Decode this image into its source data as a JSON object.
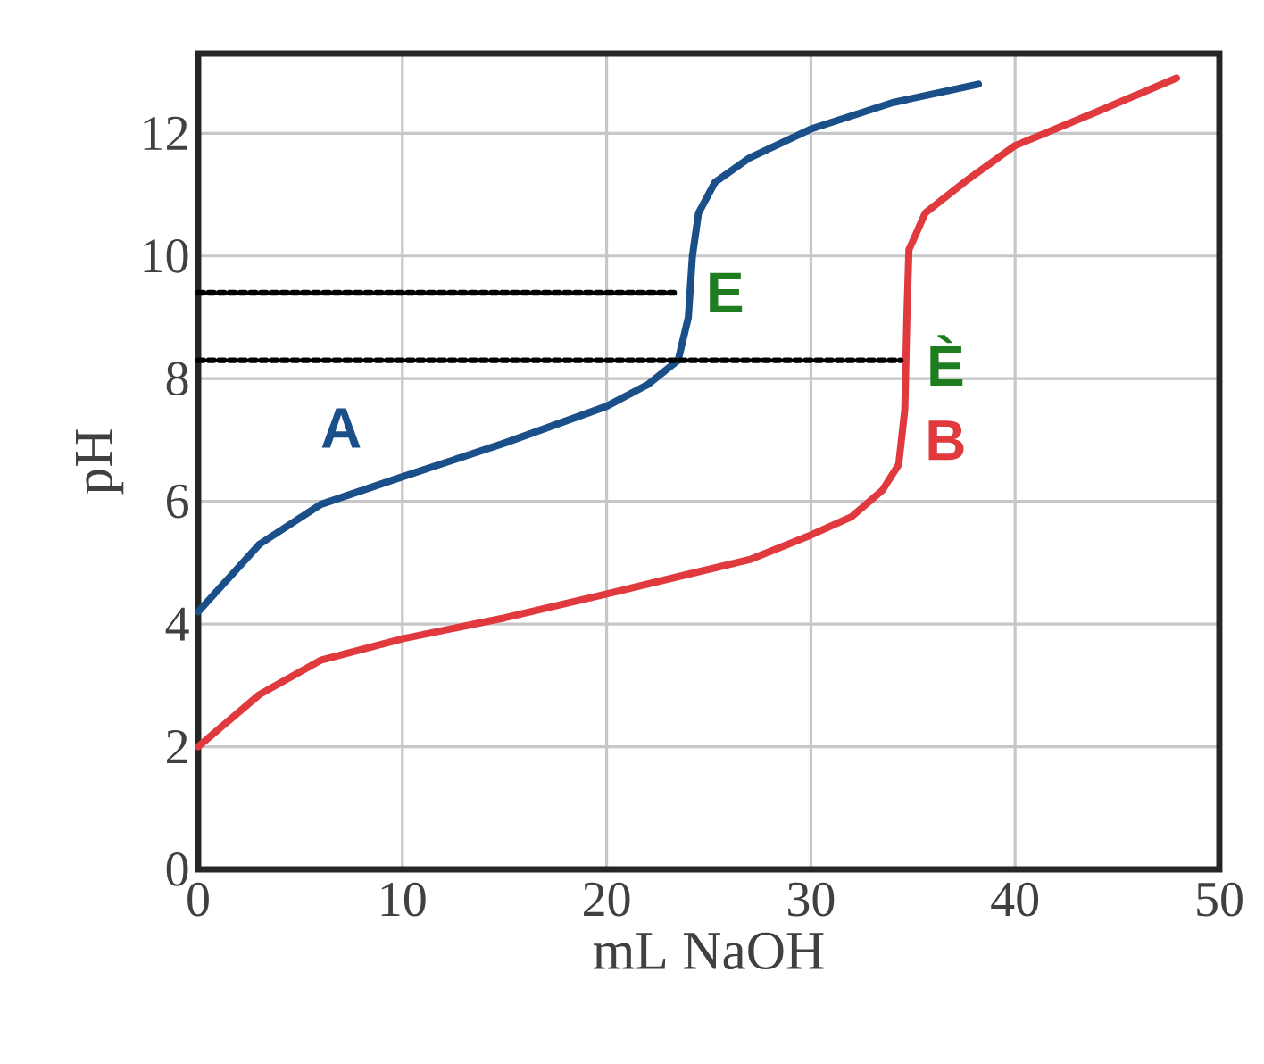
{
  "chart_data": {
    "type": "line",
    "xlabel": "mL NaOH",
    "ylabel": "pH",
    "xlim": [
      0,
      50
    ],
    "ylim": [
      0,
      13.3
    ],
    "xticks": [
      0,
      10,
      20,
      30,
      40,
      50
    ],
    "yticks": [
      0,
      2,
      4,
      6,
      8,
      10,
      12
    ],
    "grid": true,
    "series": [
      {
        "color": "#1a4f8a",
        "x": [
          0,
          3,
          6,
          10,
          15,
          20,
          22,
          23.5,
          24,
          24.2,
          24.5,
          25.3,
          27,
          30,
          34,
          38.2
        ],
        "values": [
          4.2,
          5.3,
          5.95,
          6.4,
          6.95,
          7.55,
          7.9,
          8.3,
          9.0,
          10.0,
          10.7,
          11.2,
          11.6,
          12.07,
          12.5,
          12.8
        ]
      },
      {
        "color": "#e0393e",
        "x": [
          0,
          3,
          6,
          10,
          15,
          20,
          23.6,
          27,
          30,
          32,
          33.5,
          34.3,
          34.6,
          34.7,
          34.8,
          35.6,
          37.5,
          40,
          44,
          47.9
        ],
        "values": [
          2.0,
          2.85,
          3.41,
          3.76,
          4.1,
          4.49,
          4.78,
          5.05,
          5.45,
          5.75,
          6.18,
          6.6,
          7.5,
          9.0,
          10.1,
          10.7,
          11.2,
          11.8,
          12.35,
          12.9
        ]
      },
      {
        "color": "#000000",
        "line_style": "dotted",
        "x": [
          0,
          23.3
        ],
        "values": [
          9.4,
          9.4
        ]
      },
      {
        "color": "#000000",
        "line_style": "dotted",
        "x": [
          0,
          34.4
        ],
        "values": [
          8.3,
          8.3
        ]
      }
    ],
    "annotations": [
      "A",
      "E",
      "È",
      "B"
    ]
  }
}
